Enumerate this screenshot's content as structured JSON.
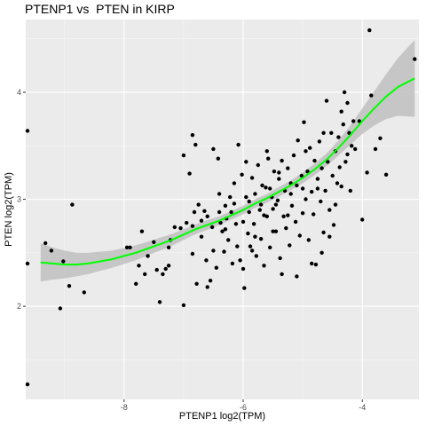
{
  "chart_data": {
    "type": "scatter",
    "title": "PTENP1 vs  PTEN in KIRP",
    "xlabel": "PTENP1 log2(TPM)",
    "ylabel": "PTEN log2(TPM)",
    "xlim": [
      -9.65,
      -3.05
    ],
    "ylim": [
      1.13,
      4.68
    ],
    "xticks": [
      -8,
      -6,
      -4
    ],
    "yticks": [
      2,
      3,
      4
    ],
    "grid": true,
    "background": "#ebebeb",
    "point_color": "#000000",
    "smooth_color": "#00ff00",
    "ribbon_color": "#bfbfbf",
    "points": [
      [
        -9.62,
        3.64
      ],
      [
        -9.62,
        2.4
      ],
      [
        -9.62,
        1.27
      ],
      [
        -9.32,
        2.59
      ],
      [
        -9.22,
        2.52
      ],
      [
        -9.07,
        1.98
      ],
      [
        -9.02,
        2.42
      ],
      [
        -8.92,
        2.19
      ],
      [
        -8.87,
        2.95
      ],
      [
        -8.67,
        2.13
      ],
      [
        -7.95,
        2.55
      ],
      [
        -7.9,
        2.55
      ],
      [
        -7.8,
        2.21
      ],
      [
        -7.75,
        2.38
      ],
      [
        -7.7,
        2.7
      ],
      [
        -7.65,
        2.3
      ],
      [
        -7.6,
        2.47
      ],
      [
        -7.5,
        2.6
      ],
      [
        -7.45,
        2.34
      ],
      [
        -7.4,
        2.04
      ],
      [
        -7.35,
        2.3
      ],
      [
        -7.25,
        2.38
      ],
      [
        -7.25,
        2.55
      ],
      [
        -7.22,
        2.62
      ],
      [
        -7.15,
        2.74
      ],
      [
        -7.05,
        2.73
      ],
      [
        -7.0,
        2.01
      ],
      [
        -7.0,
        3.41
      ],
      [
        -6.95,
        2.78
      ],
      [
        -6.9,
        3.24
      ],
      [
        -6.85,
        2.49
      ],
      [
        -6.85,
        3.6
      ],
      [
        -6.82,
        2.88
      ],
      [
        -6.8,
        3.51
      ],
      [
        -6.78,
        2.21
      ],
      [
        -6.75,
        2.95
      ],
      [
        -6.7,
        2.8
      ],
      [
        -6.65,
        2.89
      ],
      [
        -6.62,
        2.43
      ],
      [
        -6.6,
        2.84
      ],
      [
        -6.55,
        2.24
      ],
      [
        -6.52,
        2.74
      ],
      [
        -6.5,
        3.47
      ],
      [
        -6.45,
        2.36
      ],
      [
        -6.42,
        3.38
      ],
      [
        -6.4,
        2.88
      ],
      [
        -6.38,
        2.78
      ],
      [
        -6.35,
        2.7
      ],
      [
        -6.32,
        2.51
      ],
      [
        -6.3,
        2.94
      ],
      [
        -6.28,
        2.82
      ],
      [
        -6.25,
        2.62
      ],
      [
        -6.22,
        3.02
      ],
      [
        -6.2,
        2.88
      ],
      [
        -6.18,
        2.4
      ],
      [
        -6.15,
        2.96
      ],
      [
        -6.12,
        2.77
      ],
      [
        -6.1,
        2.56
      ],
      [
        -6.08,
        3.51
      ],
      [
        -6.05,
        2.43
      ],
      [
        -6.02,
        3.23
      ],
      [
        -6.0,
        2.79
      ],
      [
        -5.98,
        2.17
      ],
      [
        -5.95,
        3.02
      ],
      [
        -5.92,
        2.68
      ],
      [
        -5.9,
        2.98
      ],
      [
        -5.88,
        2.56
      ],
      [
        -5.85,
        3.2
      ],
      [
        -5.82,
        2.77
      ],
      [
        -5.8,
        3.05
      ],
      [
        -5.78,
        2.47
      ],
      [
        -5.75,
        3.32
      ],
      [
        -5.72,
        2.9
      ],
      [
        -5.7,
        2.63
      ],
      [
        -5.68,
        3.13
      ],
      [
        -5.65,
        2.38
      ],
      [
        -5.62,
        3.11
      ],
      [
        -5.6,
        2.84
      ],
      [
        -5.58,
        3.38
      ],
      [
        -5.55,
        2.55
      ],
      [
        -5.52,
        3.02
      ],
      [
        -5.5,
        2.91
      ],
      [
        -5.48,
        3.26
      ],
      [
        -5.45,
        2.7
      ],
      [
        -5.42,
        2.99
      ],
      [
        -5.4,
        3.19
      ],
      [
        -5.38,
        2.45
      ],
      [
        -5.35,
        3.36
      ],
      [
        -5.32,
        2.84
      ],
      [
        -5.3,
        3.08
      ],
      [
        -5.28,
        2.73
      ],
      [
        -5.25,
        3.29
      ],
      [
        -5.22,
        2.57
      ],
      [
        -5.2,
        3.05
      ],
      [
        -5.18,
        2.94
      ],
      [
        -5.15,
        3.41
      ],
      [
        -5.12,
        2.79
      ],
      [
        -5.1,
        3.13
      ],
      [
        -5.08,
        3.55
      ],
      [
        -5.05,
        2.66
      ],
      [
        -5.02,
        3.22
      ],
      [
        -5.0,
        2.87
      ],
      [
        -4.98,
        3.72
      ],
      [
        -4.95,
        3.0
      ],
      [
        -4.92,
        3.26
      ],
      [
        -4.9,
        2.62
      ],
      [
        -4.88,
        3.48
      ],
      [
        -4.85,
        3.07
      ],
      [
        -4.82,
        2.86
      ],
      [
        -4.8,
        3.36
      ],
      [
        -4.78,
        2.39
      ],
      [
        -4.75,
        3.19
      ],
      [
        -4.72,
        3.54
      ],
      [
        -4.7,
        2.98
      ],
      [
        -4.68,
        3.29
      ],
      [
        -4.65,
        2.69
      ],
      [
        -4.62,
        3.08
      ],
      [
        -4.6,
        3.92
      ],
      [
        -4.58,
        3.35
      ],
      [
        -4.55,
        2.9
      ],
      [
        -4.52,
        3.62
      ],
      [
        -4.5,
        3.22
      ],
      [
        -4.48,
        2.76
      ],
      [
        -4.45,
        3.45
      ],
      [
        -4.42,
        3.15
      ],
      [
        -4.4,
        3.58
      ],
      [
        -4.38,
        3.3
      ],
      [
        -4.35,
        3.12
      ],
      [
        -4.32,
        3.7
      ],
      [
        -4.3,
        4.0
      ],
      [
        -4.28,
        3.35
      ],
      [
        -4.25,
        3.42
      ],
      [
        -4.22,
        3.62
      ],
      [
        -4.2,
        3.08
      ],
      [
        -4.18,
        3.5
      ],
      [
        -4.15,
        3.73
      ],
      [
        -4.12,
        3.47
      ],
      [
        -4.05,
        3.73
      ],
      [
        -4.0,
        2.81
      ],
      [
        -3.92,
        3.25
      ],
      [
        -3.88,
        4.58
      ],
      [
        -3.85,
        3.97
      ],
      [
        -3.78,
        3.47
      ],
      [
        -3.7,
        3.57
      ],
      [
        -3.6,
        3.23
      ],
      [
        -3.12,
        4.31
      ],
      [
        -6.6,
        2.18
      ],
      [
        -6.0,
        2.35
      ],
      [
        -5.8,
        2.65
      ],
      [
        -5.55,
        3.1
      ],
      [
        -5.35,
        2.3
      ],
      [
        -5.1,
        2.28
      ],
      [
        -4.85,
        2.4
      ],
      [
        -4.68,
        2.5
      ],
      [
        -4.55,
        2.65
      ],
      [
        -5.9,
        2.88
      ],
      [
        -5.7,
        2.95
      ],
      [
        -5.45,
        2.95
      ],
      [
        -5.25,
        2.85
      ],
      [
        -5.0,
        3.1
      ],
      [
        -4.95,
        3.45
      ],
      [
        -4.75,
        3.1
      ],
      [
        -4.45,
        2.95
      ],
      [
        -6.4,
        3.05
      ],
      [
        -6.15,
        3.15
      ],
      [
        -5.95,
        3.35
      ],
      [
        -5.6,
        3.45
      ],
      [
        -5.4,
        3.25
      ],
      [
        -5.2,
        3.15
      ],
      [
        -6.7,
        2.65
      ],
      [
        -6.5,
        2.52
      ],
      [
        -6.3,
        2.72
      ],
      [
        -5.85,
        2.52
      ],
      [
        -5.65,
        2.85
      ],
      [
        -5.5,
        2.7
      ],
      [
        -6.85,
        2.75
      ],
      [
        -7.3,
        2.35
      ],
      [
        -4.65,
        3.62
      ],
      [
        -4.25,
        3.9
      ],
      [
        -4.35,
        3.82
      ]
    ],
    "smooth": [
      [
        -9.4,
        2.41
      ],
      [
        -9.2,
        2.4
      ],
      [
        -9.0,
        2.39
      ],
      [
        -8.8,
        2.39
      ],
      [
        -8.6,
        2.4
      ],
      [
        -8.4,
        2.42
      ],
      [
        -8.2,
        2.44
      ],
      [
        -8.0,
        2.47
      ],
      [
        -7.8,
        2.5
      ],
      [
        -7.6,
        2.54
      ],
      [
        -7.4,
        2.58
      ],
      [
        -7.2,
        2.62
      ],
      [
        -7.0,
        2.67
      ],
      [
        -6.8,
        2.72
      ],
      [
        -6.6,
        2.76
      ],
      [
        -6.4,
        2.8
      ],
      [
        -6.2,
        2.85
      ],
      [
        -6.0,
        2.9
      ],
      [
        -5.8,
        2.96
      ],
      [
        -5.6,
        3.01
      ],
      [
        -5.4,
        3.07
      ],
      [
        -5.2,
        3.13
      ],
      [
        -5.0,
        3.2
      ],
      [
        -4.8,
        3.28
      ],
      [
        -4.6,
        3.37
      ],
      [
        -4.4,
        3.48
      ],
      [
        -4.2,
        3.6
      ],
      [
        -4.0,
        3.73
      ],
      [
        -3.8,
        3.85
      ],
      [
        -3.6,
        3.96
      ],
      [
        -3.4,
        4.05
      ],
      [
        -3.12,
        4.13
      ]
    ],
    "ribbon_half_width": [
      0.18,
      0.15,
      0.13,
      0.11,
      0.1,
      0.09,
      0.08,
      0.075,
      0.07,
      0.065,
      0.06,
      0.055,
      0.05,
      0.045,
      0.045,
      0.04,
      0.04,
      0.04,
      0.04,
      0.04,
      0.045,
      0.045,
      0.05,
      0.055,
      0.06,
      0.07,
      0.09,
      0.12,
      0.16,
      0.21,
      0.27,
      0.36
    ]
  }
}
